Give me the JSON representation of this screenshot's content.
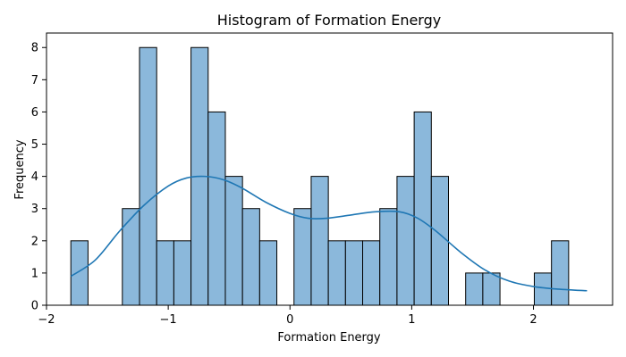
{
  "chart_data": {
    "type": "bar",
    "title": "Histogram of Formation Energy",
    "xlabel": "Formation Energy",
    "ylabel": "Frequency",
    "xlim": [
      -2,
      2.65
    ],
    "ylim": [
      0,
      8.45
    ],
    "xticks": [
      -2,
      -1,
      0,
      1,
      2
    ],
    "xtick_labels": [
      "−2",
      "−1",
      "0",
      "1",
      "2"
    ],
    "yticks": [
      0,
      1,
      2,
      3,
      4,
      5,
      6,
      7,
      8
    ],
    "ytick_labels": [
      "0",
      "1",
      "2",
      "3",
      "4",
      "5",
      "6",
      "7",
      "8"
    ],
    "bin_start": -1.8,
    "bin_width": 0.141,
    "counts": [
      2,
      0,
      0,
      3,
      8,
      2,
      2,
      8,
      6,
      4,
      3,
      2,
      0,
      3,
      4,
      2,
      2,
      2,
      3,
      4,
      6,
      4,
      0,
      1,
      1,
      0,
      0,
      1,
      2
    ],
    "kde": {
      "x": [
        -1.8,
        -1.6,
        -1.4,
        -1.2,
        -1.0,
        -0.85,
        -0.7,
        -0.55,
        -0.4,
        -0.2,
        0.0,
        0.15,
        0.3,
        0.5,
        0.7,
        0.9,
        1.05,
        1.2,
        1.4,
        1.6,
        1.8,
        2.0,
        2.2,
        2.44
      ],
      "y": [
        0.9,
        1.4,
        2.3,
        3.1,
        3.7,
        3.95,
        4.0,
        3.9,
        3.65,
        3.2,
        2.85,
        2.7,
        2.7,
        2.8,
        2.9,
        2.9,
        2.7,
        2.3,
        1.65,
        1.1,
        0.75,
        0.58,
        0.5,
        0.45
      ]
    },
    "bar_color": "#8bb8db",
    "kde_color": "#1f77b4",
    "grid": false
  }
}
